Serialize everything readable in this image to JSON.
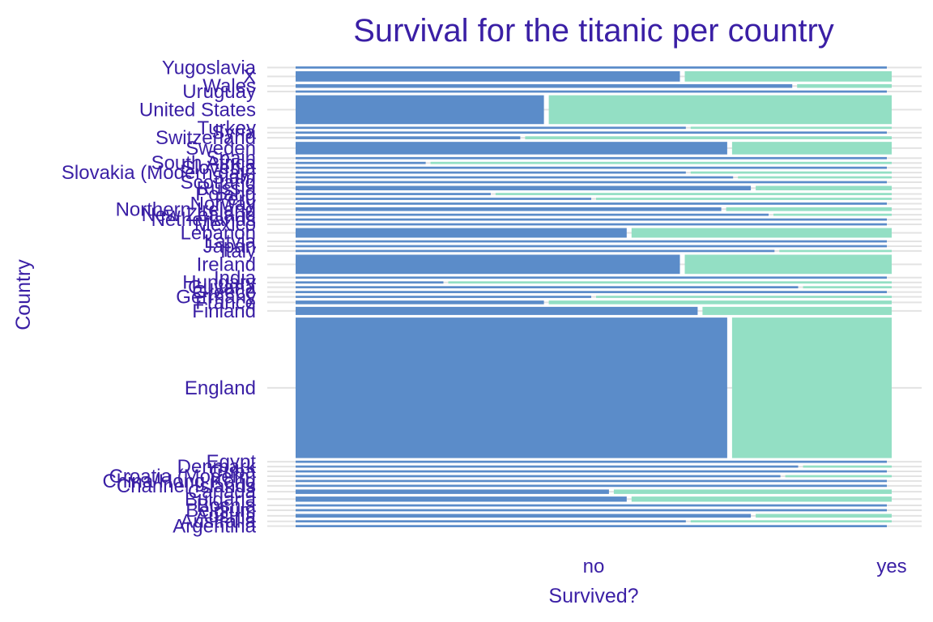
{
  "chart_data": {
    "type": "bar",
    "subtype": "spine-mosaic",
    "title": "Survival for the titanic per country",
    "xlabel": "Survived?",
    "ylabel": "Country",
    "x_categories": [
      "no",
      "yes"
    ],
    "colors": {
      "no": "#5b8cc9",
      "yes": "#93dfc4",
      "text": "#3a1fa5",
      "grid": "#e3e3e3"
    },
    "grid": true,
    "legend": "none",
    "rows": [
      {
        "country": "Yugoslavia",
        "share": 0.003,
        "no": 1.0
      },
      {
        "country": "X",
        "share": 0.014,
        "no": 0.65
      },
      {
        "country": "Wales",
        "share": 0.005,
        "no": 0.84
      },
      {
        "country": "Uruguay",
        "share": 0.003,
        "no": 1.0
      },
      {
        "country": "United States",
        "share": 0.039,
        "no": 0.42
      },
      {
        "country": "Turkey",
        "share": 0.003,
        "no": 0.66
      },
      {
        "country": "Syria",
        "share": 0.003,
        "no": 1.0
      },
      {
        "country": "Switzerland",
        "share": 0.004,
        "no": 0.38
      },
      {
        "country": "Sweden",
        "share": 0.017,
        "no": 0.73
      },
      {
        "country": "Spain",
        "share": 0.003,
        "no": 1.0
      },
      {
        "country": "South Africa",
        "share": 0.003,
        "no": 0.22
      },
      {
        "country": "Slovenia",
        "share": 0.003,
        "no": 1.0
      },
      {
        "country": "Slovakia (Modern day)",
        "share": 0.003,
        "no": 0.66
      },
      {
        "country": "Siam",
        "share": 0.003,
        "no": 0.74
      },
      {
        "country": "Scotland",
        "share": 0.003,
        "no": 1.0
      },
      {
        "country": "Russia",
        "share": 0.006,
        "no": 0.77
      },
      {
        "country": "Poland",
        "share": 0.003,
        "no": 0.33
      },
      {
        "country": "Peru",
        "share": 0.003,
        "no": 0.5
      },
      {
        "country": "Norway",
        "share": 0.003,
        "no": 1.0
      },
      {
        "country": "Northern Ireland",
        "share": 0.005,
        "no": 0.72
      },
      {
        "country": "New Zealand",
        "share": 0.003,
        "no": 0.8
      },
      {
        "country": "Netherlands",
        "share": 0.003,
        "no": 1.0
      },
      {
        "country": "Mexico",
        "share": 0.003,
        "no": 1.0
      },
      {
        "country": "Lebanon",
        "share": 0.013,
        "no": 0.56
      },
      {
        "country": "Latvia",
        "share": 0.003,
        "no": 1.0
      },
      {
        "country": "Japan",
        "share": 0.003,
        "no": 1.0
      },
      {
        "country": "Italy",
        "share": 0.003,
        "no": 0.81
      },
      {
        "country": "Ireland",
        "share": 0.026,
        "no": 0.65
      },
      {
        "country": "India",
        "share": 0.003,
        "no": 1.0
      },
      {
        "country": "Hungary",
        "share": 0.003,
        "no": 0.25
      },
      {
        "country": "Guyana",
        "share": 0.003,
        "no": 0.85
      },
      {
        "country": "Greece",
        "share": 0.003,
        "no": 1.0
      },
      {
        "country": "Germany",
        "share": 0.003,
        "no": 0.5
      },
      {
        "country": "France",
        "share": 0.005,
        "no": 0.42
      },
      {
        "country": "Finland",
        "share": 0.011,
        "no": 0.68
      },
      {
        "country": "England",
        "share": 0.19,
        "no": 0.73
      },
      {
        "country": "Egypt",
        "share": 0.003,
        "no": 1.0
      },
      {
        "country": "Denmark",
        "share": 0.003,
        "no": 0.85
      },
      {
        "country": "Cuba",
        "share": 0.003,
        "no": 1.0
      },
      {
        "country": "Croatia (Modern)",
        "share": 0.003,
        "no": 0.82
      },
      {
        "country": "China/Hong Kong",
        "share": 0.003,
        "no": 1.0
      },
      {
        "country": "Channel Islands",
        "share": 0.003,
        "no": 1.0
      },
      {
        "country": "Canada",
        "share": 0.006,
        "no": 0.53
      },
      {
        "country": "Bulgaria",
        "share": 0.007,
        "no": 0.56
      },
      {
        "country": "Bosnia",
        "share": 0.003,
        "no": 1.0
      },
      {
        "country": "Belgium",
        "share": 0.003,
        "no": 1.0
      },
      {
        "country": "Austria",
        "share": 0.005,
        "no": 0.77
      },
      {
        "country": "Australia",
        "share": 0.003,
        "no": 0.66
      },
      {
        "country": "Argentina",
        "share": 0.003,
        "no": 1.0
      }
    ]
  }
}
